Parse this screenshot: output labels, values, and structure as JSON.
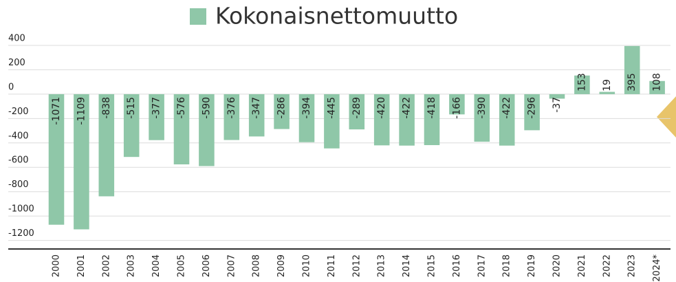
{
  "chart_data": {
    "type": "bar",
    "series": [
      {
        "name": "Kokonaisnettomuutto",
        "color": "#8fc7a8",
        "values": [
          -1071,
          -1109,
          -838,
          -515,
          -377,
          -576,
          -590,
          -376,
          -347,
          -286,
          -394,
          -445,
          -289,
          -420,
          -422,
          -418,
          -166,
          -390,
          -422,
          -296,
          -37,
          153,
          19,
          395,
          108
        ]
      }
    ],
    "categories": [
      "2000",
      "2001",
      "2002",
      "2003",
      "2004",
      "2005",
      "2006",
      "2007",
      "2008",
      "2009",
      "2010",
      "2011",
      "2012",
      "2013",
      "2014",
      "2015",
      "2016",
      "2017",
      "2018",
      "2019",
      "2020",
      "2021",
      "2022",
      "2023",
      "2024*"
    ],
    "ylim": [
      -1270,
      400
    ],
    "yticks": [
      400,
      200,
      0,
      -200,
      -400,
      -600,
      -800,
      -1000,
      -1200
    ],
    "grid": true
  }
}
